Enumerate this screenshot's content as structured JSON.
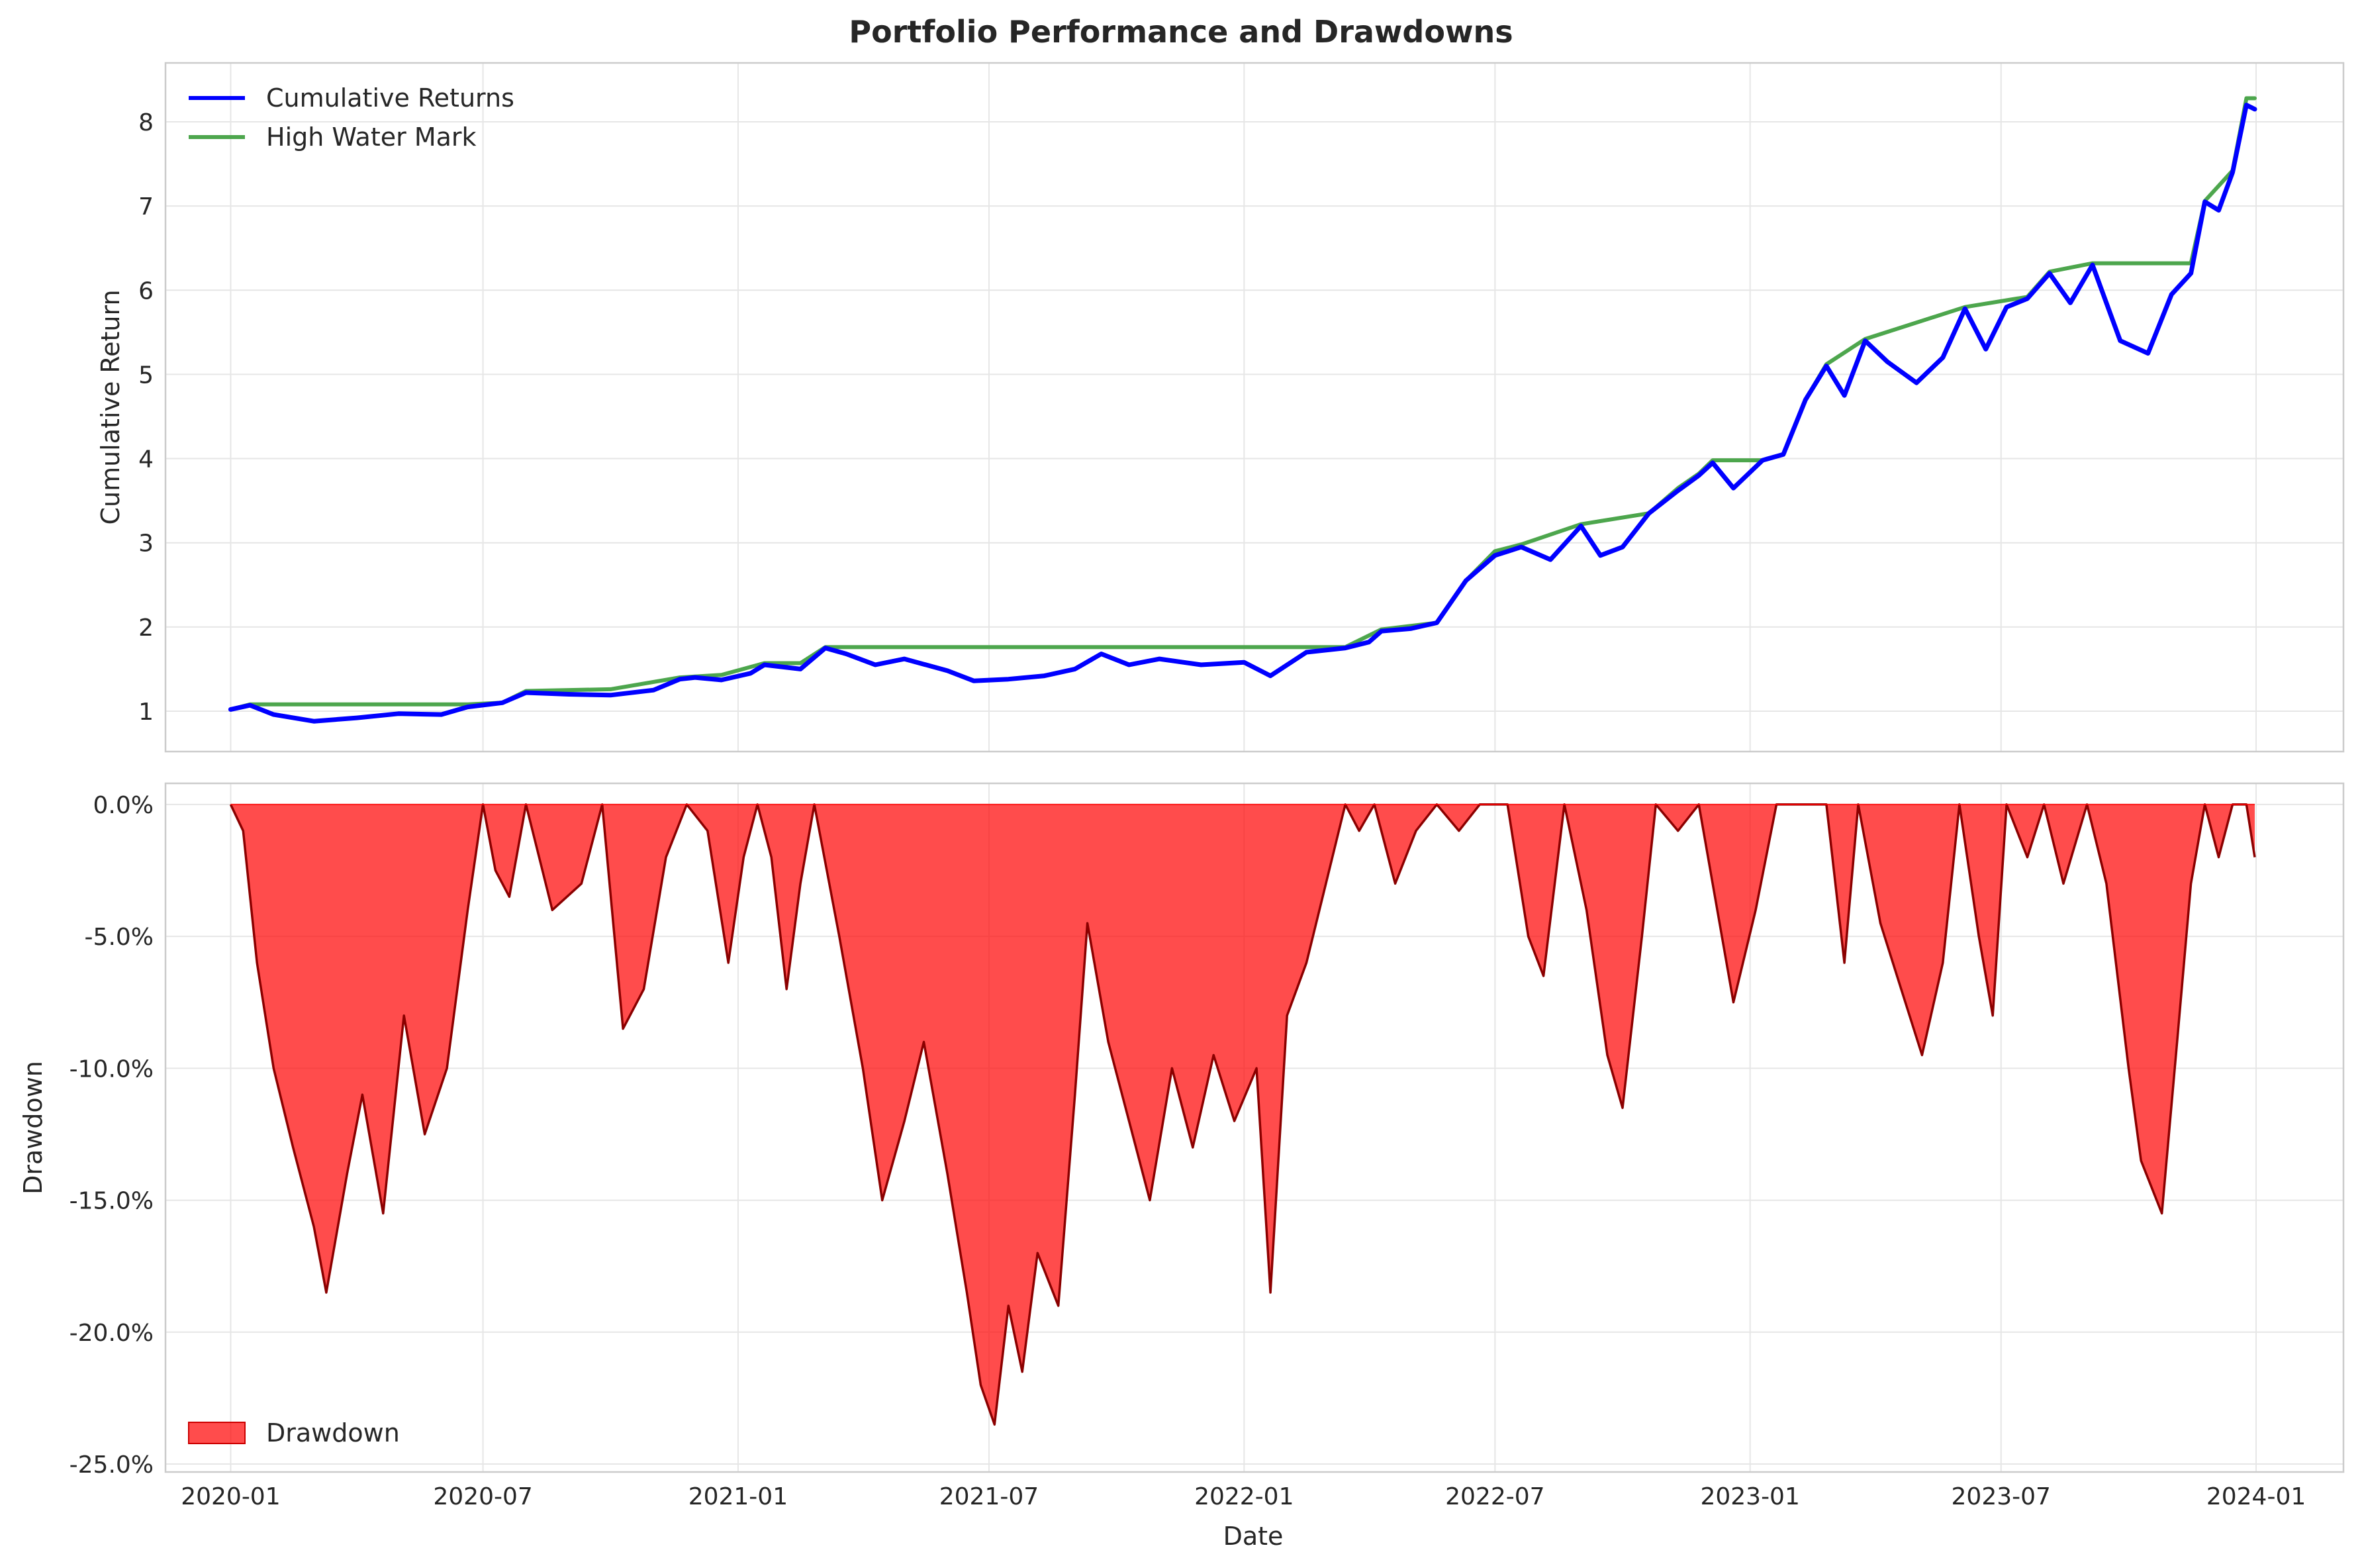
{
  "chart_data": [
    {
      "type": "line",
      "title": "Portfolio Performance and Drawdowns",
      "ylabel": "Cumulative Return",
      "ylim": [
        0.52,
        8.7
      ],
      "yticks": [
        1,
        2,
        3,
        4,
        5,
        6,
        7,
        8
      ],
      "grid": true,
      "legend_position": "top-left",
      "series": [
        {
          "name": "Cumulative Returns",
          "color": "#0000ff",
          "points": [
            [
              "2020-01-01",
              1.02
            ],
            [
              "2020-01-15",
              1.07
            ],
            [
              "2020-02-01",
              0.96
            ],
            [
              "2020-03-01",
              0.88
            ],
            [
              "2020-04-01",
              0.92
            ],
            [
              "2020-05-01",
              0.97
            ],
            [
              "2020-06-01",
              0.96
            ],
            [
              "2020-06-20",
              1.05
            ],
            [
              "2020-07-15",
              1.1
            ],
            [
              "2020-08-01",
              1.22
            ],
            [
              "2020-09-01",
              1.2
            ],
            [
              "2020-10-01",
              1.19
            ],
            [
              "2020-11-01",
              1.25
            ],
            [
              "2020-11-20",
              1.38
            ],
            [
              "2020-12-01",
              1.4
            ],
            [
              "2020-12-20",
              1.37
            ],
            [
              "2021-01-10",
              1.45
            ],
            [
              "2021-01-20",
              1.55
            ],
            [
              "2021-02-15",
              1.5
            ],
            [
              "2021-03-05",
              1.75
            ],
            [
              "2021-03-20",
              1.68
            ],
            [
              "2021-04-10",
              1.55
            ],
            [
              "2021-05-01",
              1.62
            ],
            [
              "2021-06-01",
              1.48
            ],
            [
              "2021-06-20",
              1.36
            ],
            [
              "2021-07-15",
              1.38
            ],
            [
              "2021-08-10",
              1.42
            ],
            [
              "2021-09-01",
              1.5
            ],
            [
              "2021-09-20",
              1.68
            ],
            [
              "2021-10-10",
              1.55
            ],
            [
              "2021-11-01",
              1.62
            ],
            [
              "2021-12-01",
              1.55
            ],
            [
              "2022-01-01",
              1.58
            ],
            [
              "2022-01-20",
              1.42
            ],
            [
              "2022-02-15",
              1.7
            ],
            [
              "2022-03-15",
              1.75
            ],
            [
              "2022-04-01",
              1.82
            ],
            [
              "2022-04-10",
              1.95
            ],
            [
              "2022-05-01",
              1.98
            ],
            [
              "2022-05-20",
              2.05
            ],
            [
              "2022-06-10",
              2.55
            ],
            [
              "2022-07-01",
              2.85
            ],
            [
              "2022-07-20",
              2.95
            ],
            [
              "2022-08-10",
              2.8
            ],
            [
              "2022-09-01",
              3.2
            ],
            [
              "2022-09-15",
              2.85
            ],
            [
              "2022-10-01",
              2.95
            ],
            [
              "2022-10-20",
              3.35
            ],
            [
              "2022-11-10",
              3.62
            ],
            [
              "2022-11-25",
              3.8
            ],
            [
              "2022-12-05",
              3.95
            ],
            [
              "2022-12-20",
              3.65
            ],
            [
              "2023-01-10",
              3.98
            ],
            [
              "2023-01-25",
              4.05
            ],
            [
              "2023-02-10",
              4.7
            ],
            [
              "2023-02-25",
              5.1
            ],
            [
              "2023-03-10",
              4.75
            ],
            [
              "2023-03-25",
              5.4
            ],
            [
              "2023-04-10",
              5.15
            ],
            [
              "2023-05-01",
              4.9
            ],
            [
              "2023-05-20",
              5.2
            ],
            [
              "2023-06-05",
              5.78
            ],
            [
              "2023-06-20",
              5.3
            ],
            [
              "2023-07-05",
              5.8
            ],
            [
              "2023-07-20",
              5.9
            ],
            [
              "2023-08-05",
              6.2
            ],
            [
              "2023-08-20",
              5.85
            ],
            [
              "2023-09-05",
              6.3
            ],
            [
              "2023-09-25",
              5.4
            ],
            [
              "2023-10-15",
              5.25
            ],
            [
              "2023-11-01",
              5.95
            ],
            [
              "2023-11-15",
              6.2
            ],
            [
              "2023-11-25",
              7.05
            ],
            [
              "2023-12-05",
              6.95
            ],
            [
              "2023-12-15",
              7.4
            ],
            [
              "2023-12-25",
              8.2
            ],
            [
              "2023-12-31",
              8.15
            ]
          ]
        },
        {
          "name": "High Water Mark",
          "color": "#4da64d",
          "points": [
            [
              "2020-01-01",
              1.02
            ],
            [
              "2020-01-15",
              1.08
            ],
            [
              "2020-06-20",
              1.08
            ],
            [
              "2020-07-15",
              1.1
            ],
            [
              "2020-08-01",
              1.24
            ],
            [
              "2020-10-01",
              1.26
            ],
            [
              "2020-11-20",
              1.4
            ],
            [
              "2020-12-20",
              1.43
            ],
            [
              "2021-01-20",
              1.57
            ],
            [
              "2021-02-15",
              1.57
            ],
            [
              "2021-03-05",
              1.76
            ],
            [
              "2022-03-15",
              1.76
            ],
            [
              "2022-04-10",
              1.97
            ],
            [
              "2022-05-20",
              2.05
            ],
            [
              "2022-06-10",
              2.55
            ],
            [
              "2022-07-01",
              2.9
            ],
            [
              "2022-07-20",
              2.98
            ],
            [
              "2022-09-01",
              3.22
            ],
            [
              "2022-10-20",
              3.35
            ],
            [
              "2022-11-10",
              3.65
            ],
            [
              "2022-11-25",
              3.82
            ],
            [
              "2022-12-05",
              3.98
            ],
            [
              "2023-01-10",
              3.98
            ],
            [
              "2023-01-25",
              4.05
            ],
            [
              "2023-02-10",
              4.7
            ],
            [
              "2023-02-25",
              5.12
            ],
            [
              "2023-03-25",
              5.42
            ],
            [
              "2023-06-05",
              5.8
            ],
            [
              "2023-07-20",
              5.92
            ],
            [
              "2023-08-05",
              6.22
            ],
            [
              "2023-09-05",
              6.32
            ],
            [
              "2023-11-15",
              6.32
            ],
            [
              "2023-11-25",
              7.06
            ],
            [
              "2023-12-15",
              7.42
            ],
            [
              "2023-12-25",
              8.28
            ],
            [
              "2023-12-31",
              8.28
            ]
          ]
        }
      ]
    },
    {
      "type": "area",
      "xlabel": "Date",
      "ylabel": "Drawdown",
      "ylim": [
        -25.3,
        0.8
      ],
      "yticks": [
        0,
        -5,
        -10,
        -15,
        -20,
        -25
      ],
      "ytick_labels": [
        "0.0%",
        "-5.0%",
        "-10.0%",
        "-15.0%",
        "-20.0%",
        "-25.0%"
      ],
      "xticks": [
        "2020-01-01",
        "2020-07-01",
        "2021-01-01",
        "2021-07-01",
        "2022-01-01",
        "2022-07-01",
        "2023-01-01",
        "2023-07-01",
        "2024-01-01"
      ],
      "xtick_labels": [
        "2020-01",
        "2020-07",
        "2021-01",
        "2021-07",
        "2022-01",
        "2022-07",
        "2023-01",
        "2023-07",
        "2024-01"
      ],
      "xlim": [
        "2019-11-15",
        "2024-03-04"
      ],
      "grid": true,
      "legend_position": "bottom-left",
      "series": [
        {
          "name": "Drawdown",
          "fill_color": "#ff0000",
          "fill_alpha": 0.7,
          "line_color": "#8b0000",
          "points": [
            [
              "2020-01-01",
              0.0
            ],
            [
              "2020-01-10",
              -1.0
            ],
            [
              "2020-01-20",
              -6.0
            ],
            [
              "2020-02-01",
              -10.0
            ],
            [
              "2020-02-15",
              -13.0
            ],
            [
              "2020-03-01",
              -16.0
            ],
            [
              "2020-03-10",
              -18.5
            ],
            [
              "2020-03-25",
              -14.0
            ],
            [
              "2020-04-05",
              -11.0
            ],
            [
              "2020-04-20",
              -15.5
            ],
            [
              "2020-05-05",
              -8.0
            ],
            [
              "2020-05-20",
              -12.5
            ],
            [
              "2020-06-05",
              -10.0
            ],
            [
              "2020-06-20",
              -4.0
            ],
            [
              "2020-07-01",
              0.0
            ],
            [
              "2020-07-10",
              -2.5
            ],
            [
              "2020-07-20",
              -3.5
            ],
            [
              "2020-08-01",
              0.0
            ],
            [
              "2020-08-20",
              -4.0
            ],
            [
              "2020-09-10",
              -3.0
            ],
            [
              "2020-09-25",
              0.0
            ],
            [
              "2020-10-10",
              -8.5
            ],
            [
              "2020-10-25",
              -7.0
            ],
            [
              "2020-11-10",
              -2.0
            ],
            [
              "2020-11-25",
              0.0
            ],
            [
              "2020-12-10",
              -1.0
            ],
            [
              "2020-12-25",
              -6.0
            ],
            [
              "2021-01-05",
              -2.0
            ],
            [
              "2021-01-15",
              0.0
            ],
            [
              "2021-01-25",
              -2.0
            ],
            [
              "2021-02-05",
              -7.0
            ],
            [
              "2021-02-15",
              -3.0
            ],
            [
              "2021-02-25",
              0.0
            ],
            [
              "2021-03-15",
              -5.0
            ],
            [
              "2021-04-01",
              -10.0
            ],
            [
              "2021-04-15",
              -15.0
            ],
            [
              "2021-05-01",
              -12.0
            ],
            [
              "2021-05-15",
              -9.0
            ],
            [
              "2021-06-01",
              -14.0
            ],
            [
              "2021-06-15",
              -18.5
            ],
            [
              "2021-06-25",
              -22.0
            ],
            [
              "2021-07-05",
              -23.5
            ],
            [
              "2021-07-15",
              -19.0
            ],
            [
              "2021-07-25",
              -21.5
            ],
            [
              "2021-08-05",
              -17.0
            ],
            [
              "2021-08-20",
              -19.0
            ],
            [
              "2021-09-01",
              -11.0
            ],
            [
              "2021-09-10",
              -4.5
            ],
            [
              "2021-09-25",
              -9.0
            ],
            [
              "2021-10-10",
              -12.0
            ],
            [
              "2021-10-25",
              -15.0
            ],
            [
              "2021-11-10",
              -10.0
            ],
            [
              "2021-11-25",
              -13.0
            ],
            [
              "2021-12-10",
              -9.5
            ],
            [
              "2021-12-25",
              -12.0
            ],
            [
              "2022-01-10",
              -10.0
            ],
            [
              "2022-01-20",
              -18.5
            ],
            [
              "2022-02-01",
              -8.0
            ],
            [
              "2022-02-15",
              -6.0
            ],
            [
              "2022-03-01",
              -3.0
            ],
            [
              "2022-03-15",
              0.0
            ],
            [
              "2022-03-25",
              -1.0
            ],
            [
              "2022-04-05",
              0.0
            ],
            [
              "2022-04-20",
              -3.0
            ],
            [
              "2022-05-05",
              -1.0
            ],
            [
              "2022-05-20",
              0.0
            ],
            [
              "2022-06-05",
              -1.0
            ],
            [
              "2022-06-20",
              0.0
            ],
            [
              "2022-07-10",
              0.0
            ],
            [
              "2022-07-25",
              -5.0
            ],
            [
              "2022-08-05",
              -6.5
            ],
            [
              "2022-08-20",
              0.0
            ],
            [
              "2022-09-05",
              -4.0
            ],
            [
              "2022-09-20",
              -9.5
            ],
            [
              "2022-10-01",
              -11.5
            ],
            [
              "2022-10-15",
              -5.0
            ],
            [
              "2022-10-25",
              0.0
            ],
            [
              "2022-11-10",
              -1.0
            ],
            [
              "2022-11-25",
              0.0
            ],
            [
              "2022-12-05",
              -3.0
            ],
            [
              "2022-12-20",
              -7.5
            ],
            [
              "2023-01-05",
              -4.0
            ],
            [
              "2023-01-20",
              0.0
            ],
            [
              "2023-02-10",
              0.0
            ],
            [
              "2023-02-25",
              0.0
            ],
            [
              "2023-03-10",
              -6.0
            ],
            [
              "2023-03-20",
              0.0
            ],
            [
              "2023-04-05",
              -4.5
            ],
            [
              "2023-04-20",
              -7.0
            ],
            [
              "2023-05-05",
              -9.5
            ],
            [
              "2023-05-20",
              -6.0
            ],
            [
              "2023-06-01",
              0.0
            ],
            [
              "2023-06-15",
              -5.0
            ],
            [
              "2023-06-25",
              -8.0
            ],
            [
              "2023-07-05",
              0.0
            ],
            [
              "2023-07-20",
              -2.0
            ],
            [
              "2023-08-01",
              0.0
            ],
            [
              "2023-08-15",
              -3.0
            ],
            [
              "2023-09-01",
              0.0
            ],
            [
              "2023-09-15",
              -3.0
            ],
            [
              "2023-10-01",
              -10.0
            ],
            [
              "2023-10-10",
              -13.5
            ],
            [
              "2023-10-25",
              -15.5
            ],
            [
              "2023-11-05",
              -9.0
            ],
            [
              "2023-11-15",
              -3.0
            ],
            [
              "2023-11-25",
              0.0
            ],
            [
              "2023-12-05",
              -2.0
            ],
            [
              "2023-12-15",
              0.0
            ],
            [
              "2023-12-25",
              0.0
            ],
            [
              "2023-12-31",
              -2.0
            ]
          ]
        }
      ]
    }
  ]
}
